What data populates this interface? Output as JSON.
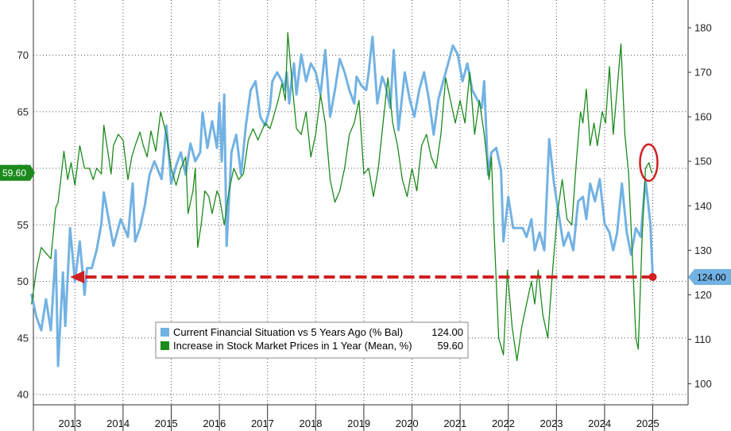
{
  "chart_data": {
    "type": "line",
    "left_axis": {
      "min": 40,
      "max": 75,
      "ticks": [
        40,
        45,
        50,
        55,
        60,
        65,
        70
      ]
    },
    "right_axis": {
      "min": 100,
      "max": 182,
      "ticks": [
        100,
        110,
        120,
        130,
        140,
        150,
        160,
        170,
        180
      ]
    },
    "x_axis": {
      "start": 2012.6,
      "end": 2026.2,
      "year_labels": [
        "2013",
        "2014",
        "2015",
        "2016",
        "2017",
        "2018",
        "2019",
        "2020",
        "2021",
        "2022",
        "2023",
        "2024",
        "2025"
      ]
    },
    "series": [
      {
        "name": "Current Financial Situation vs 5 Years Ago (% Bal)",
        "axis": "right",
        "color": "#72b2e3",
        "last_value_label": "124.00",
        "points": [
          [
            2012.6,
            120
          ],
          [
            2012.7,
            115
          ],
          [
            2012.8,
            112
          ],
          [
            2012.9,
            119
          ],
          [
            2013.0,
            112
          ],
          [
            2013.1,
            130
          ],
          [
            2013.15,
            104
          ],
          [
            2013.25,
            125
          ],
          [
            2013.3,
            113
          ],
          [
            2013.4,
            135
          ],
          [
            2013.5,
            123
          ],
          [
            2013.6,
            132
          ],
          [
            2013.7,
            120
          ],
          [
            2013.75,
            126
          ],
          [
            2013.85,
            126
          ],
          [
            2013.95,
            130
          ],
          [
            2014.05,
            136
          ],
          [
            2014.1,
            143
          ],
          [
            2014.2,
            137
          ],
          [
            2014.3,
            131
          ],
          [
            2014.45,
            137
          ],
          [
            2014.6,
            133
          ],
          [
            2014.7,
            145
          ],
          [
            2014.75,
            132
          ],
          [
            2014.85,
            135
          ],
          [
            2014.95,
            140
          ],
          [
            2015.05,
            147
          ],
          [
            2015.15,
            150
          ],
          [
            2015.3,
            146
          ],
          [
            2015.4,
            158
          ],
          [
            2015.5,
            145
          ],
          [
            2015.6,
            149
          ],
          [
            2015.7,
            152
          ],
          [
            2015.8,
            147
          ],
          [
            2015.9,
            154
          ],
          [
            2016.0,
            150
          ],
          [
            2016.1,
            152
          ],
          [
            2016.15,
            161
          ],
          [
            2016.25,
            153
          ],
          [
            2016.35,
            159
          ],
          [
            2016.45,
            153
          ],
          [
            2016.5,
            163
          ],
          [
            2016.55,
            150
          ],
          [
            2016.6,
            165
          ],
          [
            2016.65,
            131
          ],
          [
            2016.75,
            152
          ],
          [
            2016.85,
            156
          ],
          [
            2016.95,
            147
          ],
          [
            2017.05,
            158
          ],
          [
            2017.15,
            166
          ],
          [
            2017.25,
            168
          ],
          [
            2017.35,
            160
          ],
          [
            2017.45,
            158
          ],
          [
            2017.55,
            162
          ],
          [
            2017.6,
            168
          ],
          [
            2017.7,
            170
          ],
          [
            2017.8,
            168
          ],
          [
            2017.85,
            166
          ],
          [
            2017.9,
            170
          ],
          [
            2017.95,
            163
          ],
          [
            2018.0,
            168
          ],
          [
            2018.05,
            172
          ],
          [
            2018.1,
            165
          ],
          [
            2018.2,
            174
          ],
          [
            2018.3,
            168
          ],
          [
            2018.4,
            172
          ],
          [
            2018.45,
            171
          ],
          [
            2018.5,
            170
          ],
          [
            2018.6,
            165
          ],
          [
            2018.7,
            175
          ],
          [
            2018.8,
            160
          ],
          [
            2018.9,
            166
          ],
          [
            2019.0,
            173
          ],
          [
            2019.1,
            170
          ],
          [
            2019.2,
            166
          ],
          [
            2019.3,
            163
          ],
          [
            2019.35,
            169
          ],
          [
            2019.45,
            167
          ],
          [
            2019.55,
            166
          ],
          [
            2019.6,
            170
          ],
          [
            2019.68,
            178
          ],
          [
            2019.78,
            163
          ],
          [
            2019.88,
            169
          ],
          [
            2019.95,
            167
          ],
          [
            2020.05,
            162
          ],
          [
            2020.12,
            175
          ],
          [
            2020.22,
            157
          ],
          [
            2020.35,
            170
          ],
          [
            2020.45,
            164
          ],
          [
            2020.55,
            160
          ],
          [
            2020.65,
            166
          ],
          [
            2020.75,
            170
          ],
          [
            2020.85,
            164
          ],
          [
            2020.95,
            156
          ],
          [
            2021.05,
            164
          ],
          [
            2021.15,
            168
          ],
          [
            2021.25,
            172
          ],
          [
            2021.35,
            176
          ],
          [
            2021.45,
            174
          ],
          [
            2021.55,
            168
          ],
          [
            2021.65,
            172
          ],
          [
            2021.75,
            166
          ],
          [
            2021.85,
            164
          ],
          [
            2021.95,
            162
          ],
          [
            2022.0,
            168
          ],
          [
            2022.08,
            147
          ],
          [
            2022.15,
            152
          ],
          [
            2022.25,
            153
          ],
          [
            2022.35,
            148
          ],
          [
            2022.4,
            132
          ],
          [
            2022.5,
            142
          ],
          [
            2022.6,
            135
          ],
          [
            2022.7,
            135
          ],
          [
            2022.8,
            135
          ],
          [
            2022.88,
            133
          ],
          [
            2022.98,
            137
          ],
          [
            2023.05,
            130
          ],
          [
            2023.15,
            134
          ],
          [
            2023.25,
            130
          ],
          [
            2023.35,
            155
          ],
          [
            2023.45,
            145
          ],
          [
            2023.55,
            138
          ],
          [
            2023.65,
            131
          ],
          [
            2023.75,
            134
          ],
          [
            2023.85,
            130
          ],
          [
            2023.95,
            141
          ],
          [
            2024.05,
            142
          ],
          [
            2024.12,
            137
          ],
          [
            2024.2,
            145
          ],
          [
            2024.3,
            141
          ],
          [
            2024.4,
            146
          ],
          [
            2024.5,
            136
          ],
          [
            2024.6,
            134
          ],
          [
            2024.68,
            130
          ],
          [
            2024.76,
            134
          ],
          [
            2024.86,
            145
          ],
          [
            2024.96,
            134
          ],
          [
            2025.05,
            129
          ],
          [
            2025.15,
            135
          ],
          [
            2025.25,
            133
          ],
          [
            2025.35,
            146
          ],
          [
            2025.45,
            136
          ],
          [
            2025.5,
            124
          ]
        ]
      },
      {
        "name": "Increase in Stock Market Prices in 1 Year (Mean, %)",
        "axis": "left",
        "color": "#1b8a1b",
        "last_value_label": "59.60",
        "points": [
          [
            2012.6,
            48
          ],
          [
            2012.7,
            51
          ],
          [
            2012.8,
            53
          ],
          [
            2012.9,
            52.5
          ],
          [
            2013.0,
            52
          ],
          [
            2013.1,
            56.5
          ],
          [
            2013.15,
            57
          ],
          [
            2013.22,
            59.5
          ],
          [
            2013.27,
            61.5
          ],
          [
            2013.35,
            59
          ],
          [
            2013.42,
            60.5
          ],
          [
            2013.5,
            58.5
          ],
          [
            2013.6,
            62
          ],
          [
            2013.7,
            60
          ],
          [
            2013.8,
            60
          ],
          [
            2013.88,
            59
          ],
          [
            2013.95,
            60
          ],
          [
            2014.05,
            59.5
          ],
          [
            2014.1,
            63.8
          ],
          [
            2014.2,
            61
          ],
          [
            2014.25,
            59.5
          ],
          [
            2014.3,
            62
          ],
          [
            2014.4,
            63
          ],
          [
            2014.5,
            62.5
          ],
          [
            2014.6,
            59
          ],
          [
            2014.68,
            61
          ],
          [
            2014.75,
            62
          ],
          [
            2014.85,
            63.2
          ],
          [
            2014.92,
            62
          ],
          [
            2015.0,
            61
          ],
          [
            2015.08,
            63.3
          ],
          [
            2015.18,
            61.5
          ],
          [
            2015.28,
            65
          ],
          [
            2015.4,
            63
          ],
          [
            2015.5,
            60
          ],
          [
            2015.6,
            58.5
          ],
          [
            2015.7,
            60
          ],
          [
            2015.8,
            61
          ],
          [
            2015.85,
            56
          ],
          [
            2015.95,
            58
          ],
          [
            2016.0,
            60
          ],
          [
            2016.05,
            53
          ],
          [
            2016.12,
            55
          ],
          [
            2016.2,
            58
          ],
          [
            2016.28,
            57.5
          ],
          [
            2016.35,
            56
          ],
          [
            2016.45,
            58
          ],
          [
            2016.5,
            57.5
          ],
          [
            2016.6,
            55
          ],
          [
            2016.7,
            58
          ],
          [
            2016.8,
            60
          ],
          [
            2016.9,
            59
          ],
          [
            2017.0,
            59.5
          ],
          [
            2017.1,
            62.5
          ],
          [
            2017.2,
            63.5
          ],
          [
            2017.3,
            62.5
          ],
          [
            2017.45,
            64
          ],
          [
            2017.55,
            63.5
          ],
          [
            2017.62,
            64.5
          ],
          [
            2017.72,
            66
          ],
          [
            2017.8,
            67.5
          ],
          [
            2017.87,
            66
          ],
          [
            2017.92,
            72
          ],
          [
            2018.0,
            68
          ],
          [
            2018.1,
            63.5
          ],
          [
            2018.2,
            63
          ],
          [
            2018.3,
            65
          ],
          [
            2018.4,
            61
          ],
          [
            2018.5,
            63
          ],
          [
            2018.6,
            66.5
          ],
          [
            2018.7,
            64
          ],
          [
            2018.8,
            59
          ],
          [
            2018.9,
            57
          ],
          [
            2019.0,
            58
          ],
          [
            2019.1,
            60
          ],
          [
            2019.2,
            63
          ],
          [
            2019.3,
            64
          ],
          [
            2019.4,
            66
          ],
          [
            2019.5,
            59.5
          ],
          [
            2019.6,
            60
          ],
          [
            2019.7,
            57.5
          ],
          [
            2019.8,
            60
          ],
          [
            2019.9,
            64
          ],
          [
            2020.0,
            68
          ],
          [
            2020.1,
            64
          ],
          [
            2020.2,
            62
          ],
          [
            2020.3,
            59
          ],
          [
            2020.4,
            57.5
          ],
          [
            2020.5,
            60
          ],
          [
            2020.6,
            58
          ],
          [
            2020.7,
            62
          ],
          [
            2020.8,
            63
          ],
          [
            2020.9,
            61
          ],
          [
            2021.0,
            60
          ],
          [
            2021.1,
            63
          ],
          [
            2021.2,
            68
          ],
          [
            2021.3,
            66
          ],
          [
            2021.4,
            64
          ],
          [
            2021.5,
            66
          ],
          [
            2021.6,
            64
          ],
          [
            2021.7,
            68.5
          ],
          [
            2021.8,
            63
          ],
          [
            2021.9,
            66
          ],
          [
            2022.0,
            63
          ],
          [
            2022.1,
            59
          ],
          [
            2022.15,
            61
          ],
          [
            2022.2,
            55
          ],
          [
            2022.3,
            45
          ],
          [
            2022.4,
            43.5
          ],
          [
            2022.48,
            51
          ],
          [
            2022.58,
            46
          ],
          [
            2022.68,
            43
          ],
          [
            2022.78,
            46
          ],
          [
            2022.88,
            48
          ],
          [
            2022.98,
            50
          ],
          [
            2023.05,
            48
          ],
          [
            2023.12,
            51
          ],
          [
            2023.22,
            47
          ],
          [
            2023.32,
            45
          ],
          [
            2023.42,
            51
          ],
          [
            2023.52,
            56
          ],
          [
            2023.62,
            59
          ],
          [
            2023.72,
            55.5
          ],
          [
            2023.82,
            55
          ],
          [
            2023.92,
            61
          ],
          [
            2024.0,
            65
          ],
          [
            2024.05,
            64
          ],
          [
            2024.12,
            67
          ],
          [
            2024.2,
            62
          ],
          [
            2024.28,
            64
          ],
          [
            2024.35,
            62
          ],
          [
            2024.45,
            65
          ],
          [
            2024.52,
            64
          ],
          [
            2024.6,
            69
          ],
          [
            2024.68,
            63
          ],
          [
            2024.76,
            67
          ],
          [
            2024.84,
            71
          ],
          [
            2024.92,
            63
          ],
          [
            2025.0,
            59.5
          ],
          [
            2025.08,
            52
          ],
          [
            2025.15,
            45
          ],
          [
            2025.2,
            44
          ],
          [
            2025.28,
            54
          ],
          [
            2025.35,
            60
          ],
          [
            2025.42,
            60.5
          ],
          [
            2025.48,
            59.6
          ]
        ]
      }
    ],
    "legend": {
      "position": "bottom-left",
      "entries": [
        {
          "label": "Current Financial Situation vs 5 Years Ago (% Bal)",
          "value": "124.00"
        },
        {
          "label": "Increase in Stock Market Prices in 1 Year (Mean, %)",
          "value": "59.60"
        }
      ]
    },
    "annotations": {
      "arrow": {
        "description": "dashed red arrow at the latest level",
        "from_x": 2025.5,
        "to_x": 2013.4,
        "value_right": 124
      },
      "circle": {
        "description": "red ellipse around recent green peak",
        "x": 2025.45,
        "value_left": 60.5
      }
    }
  },
  "colors": {
    "blue_series": "#72b2e3",
    "green_series": "#1b8a1b",
    "annotation": "#d02020",
    "grid": "#555555",
    "legend_bg": "#ffffff"
  }
}
